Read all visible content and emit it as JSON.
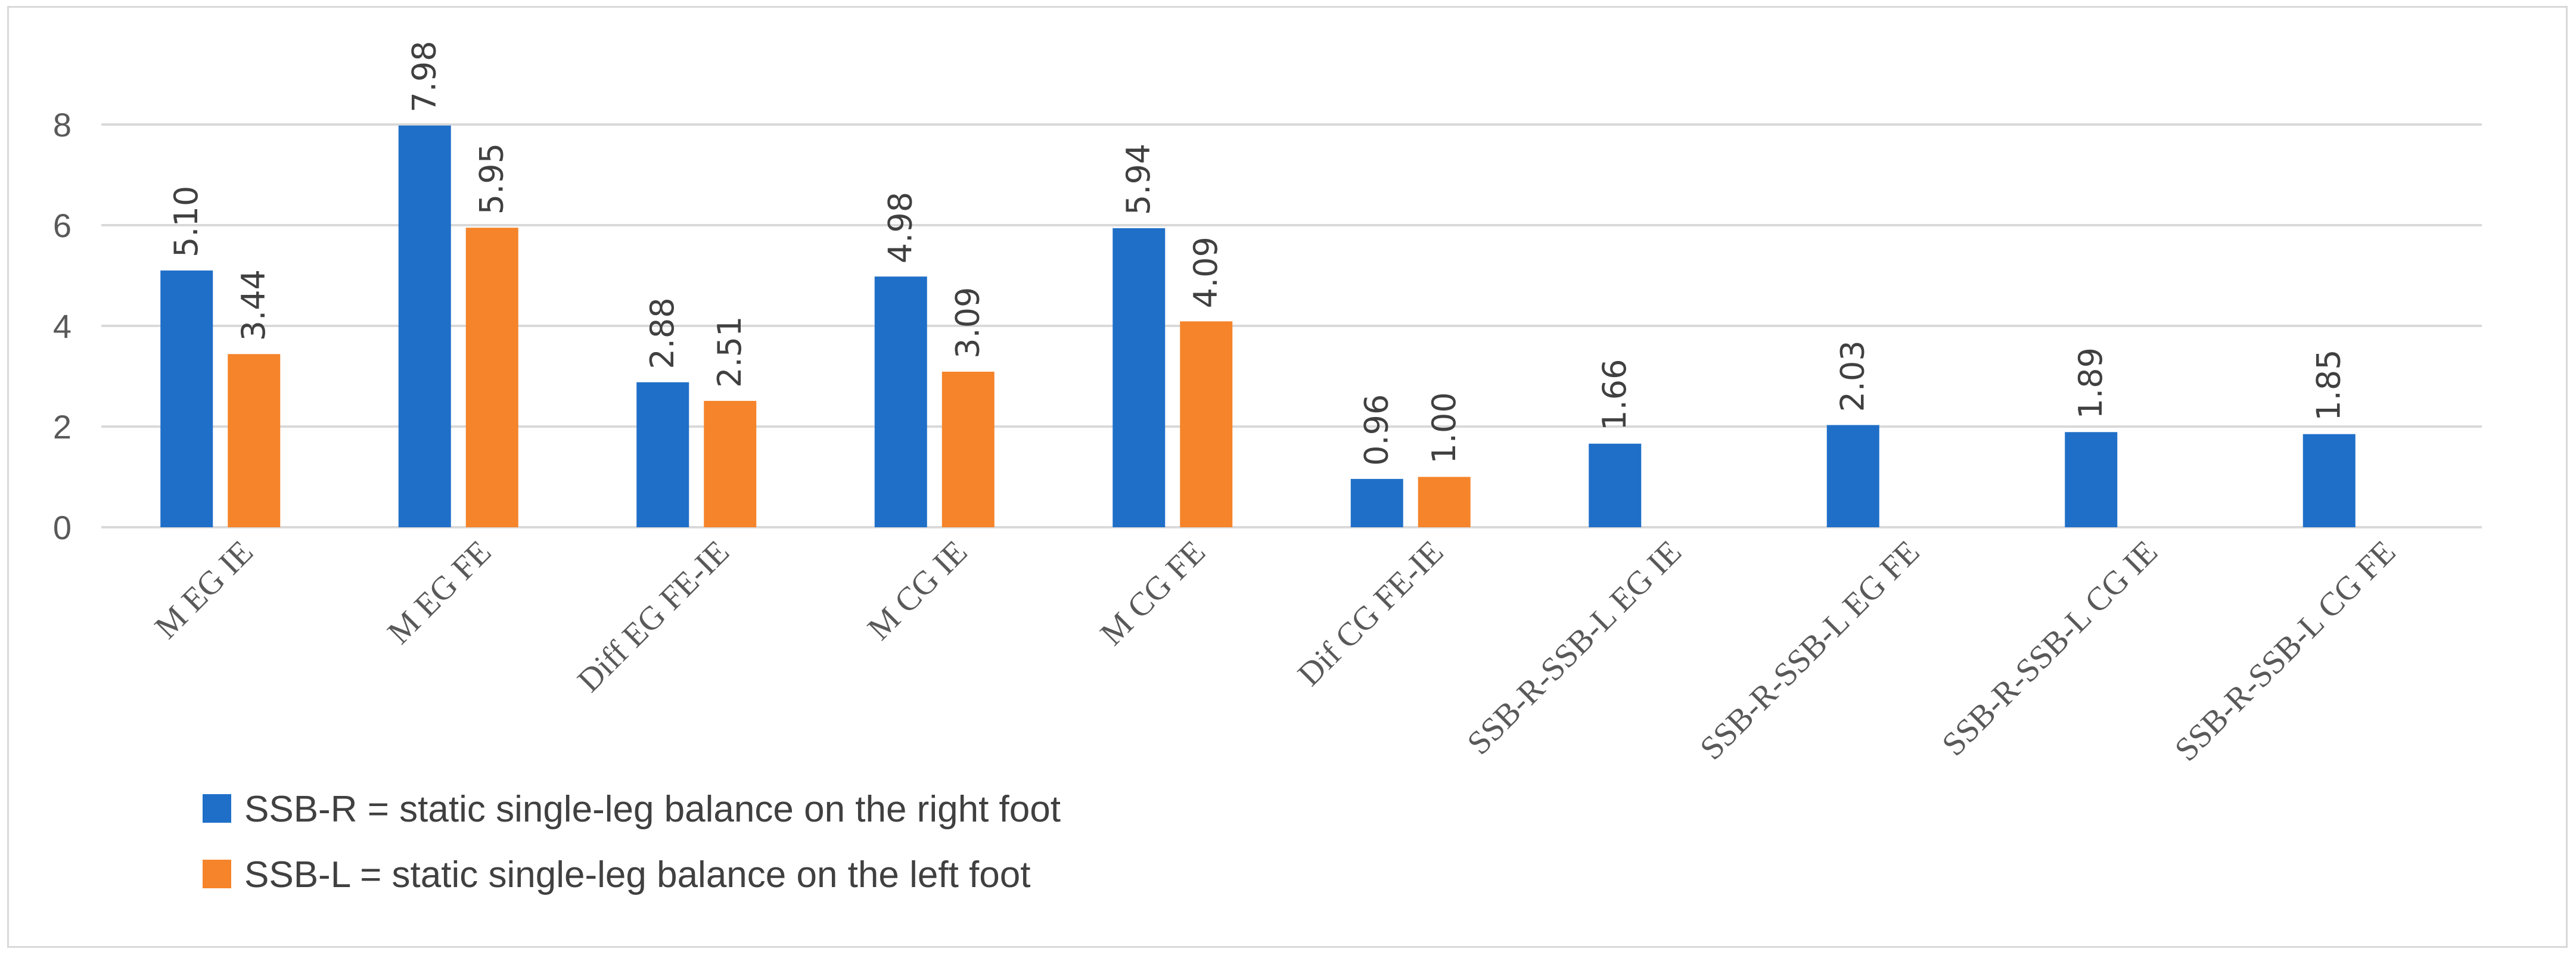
{
  "chart_data": {
    "type": "bar",
    "title": "",
    "xlabel": "",
    "ylabel": "",
    "ylim": [
      0,
      9
    ],
    "yticks": [
      0,
      2,
      4,
      6,
      8
    ],
    "grid": true,
    "legend_placement": "bottom-left",
    "categories": [
      "M EG IE",
      "M EG FE",
      "Diff EG FE-IE",
      "M CG IE",
      "M CG FE",
      "Dif CG FE-IE",
      "SSB-R-SSB-L EG IE",
      "SSB-R-SSB-L EG FE",
      "SSB-R-SSB-L CG IE",
      "SSB-R-SSB-L CG FE"
    ],
    "series": [
      {
        "name": "SSB-R = static single-leg balance on the right foot",
        "color": "#1f6fc8",
        "values": [
          5.1,
          7.98,
          2.88,
          4.98,
          5.94,
          0.96,
          1.66,
          2.03,
          1.89,
          1.85
        ],
        "labels": [
          "5.10",
          "7.98",
          "2.88",
          "4.98",
          "5.94",
          "0.96",
          "1.66",
          "2.03",
          "1.89",
          "1.85"
        ]
      },
      {
        "name": "SSB-L = static single-leg balance on the left foot",
        "color": "#f5842a",
        "values": [
          3.44,
          5.95,
          2.51,
          3.09,
          4.09,
          1.0,
          null,
          null,
          null,
          null
        ],
        "labels": [
          "3.44",
          "5.95",
          "2.51",
          "3.09",
          "4.09",
          "1.00",
          null,
          null,
          null,
          null
        ]
      }
    ]
  }
}
